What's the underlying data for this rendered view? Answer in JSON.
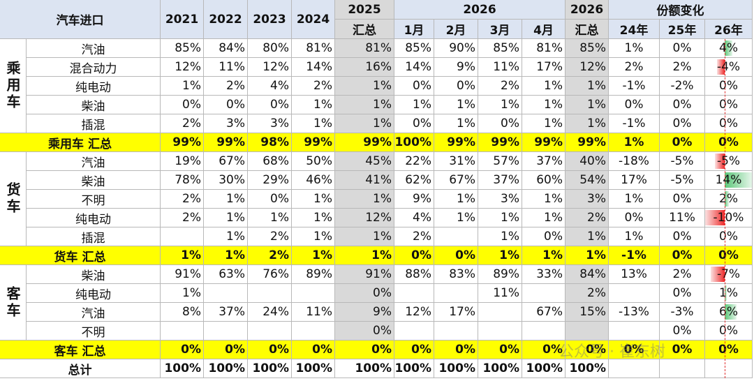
{
  "header": {
    "title": "汽车进口",
    "years": [
      "2021",
      "2022",
      "2023",
      "2024"
    ],
    "total_2025": [
      "2025",
      "汇总"
    ],
    "year_2026": "2026",
    "months": [
      "1月",
      "2月",
      "3月",
      "4月"
    ],
    "total_2026": [
      "2026",
      "汇总"
    ],
    "share_change": "份额变化",
    "share_years": [
      "24年",
      "25年",
      "26年"
    ]
  },
  "groups": [
    {
      "label": "乘用车",
      "rows": [
        {
          "name": "汽油",
          "cells": [
            "85%",
            "84%",
            "80%",
            "81%",
            "81%",
            "85%",
            "90%",
            "85%",
            "81%",
            "85%",
            "1%",
            "0%",
            "4%"
          ]
        },
        {
          "name": "混合动力",
          "cells": [
            "12%",
            "11%",
            "12%",
            "14%",
            "16%",
            "14%",
            "9%",
            "11%",
            "17%",
            "12%",
            "2%",
            "2%",
            "-4%"
          ]
        },
        {
          "name": "纯电动",
          "cells": [
            "1%",
            "2%",
            "4%",
            "2%",
            "1%",
            "0%",
            "0%",
            "2%",
            "1%",
            "1%",
            "-1%",
            "-2%",
            "0%"
          ]
        },
        {
          "name": "柴油",
          "cells": [
            "0%",
            "0%",
            "0%",
            "1%",
            "1%",
            "1%",
            "1%",
            "1%",
            "1%",
            "1%",
            "0%",
            "0%",
            "0%"
          ]
        },
        {
          "name": "插混",
          "cells": [
            "2%",
            "3%",
            "3%",
            "1%",
            "1%",
            "0%",
            "1%",
            "0%",
            "1%",
            "1%",
            "-1%",
            "0%",
            "0%"
          ]
        }
      ],
      "total": {
        "name": "乘用车 汇总",
        "cells": [
          "99%",
          "99%",
          "98%",
          "99%",
          "99%",
          "100%",
          "99%",
          "99%",
          "99%",
          "99%",
          "1%",
          "0%",
          "0%"
        ]
      }
    },
    {
      "label": "货车",
      "rows": [
        {
          "name": "汽油",
          "cells": [
            "19%",
            "67%",
            "68%",
            "50%",
            "45%",
            "22%",
            "31%",
            "57%",
            "37%",
            "40%",
            "-18%",
            "-5%",
            "-5%"
          ]
        },
        {
          "name": "柴油",
          "cells": [
            "78%",
            "30%",
            "29%",
            "46%",
            "41%",
            "62%",
            "67%",
            "37%",
            "60%",
            "54%",
            "17%",
            "-5%",
            "14%"
          ]
        },
        {
          "name": "不明",
          "cells": [
            "2%",
            "1%",
            "0%",
            "1%",
            "1%",
            "9%",
            "1%",
            "3%",
            "1%",
            "3%",
            "1%",
            "0%",
            "2%"
          ]
        },
        {
          "name": "纯电动",
          "cells": [
            "2%",
            "1%",
            "1%",
            "1%",
            "12%",
            "4%",
            "1%",
            "1%",
            "1%",
            "2%",
            "0%",
            "11%",
            "-10%"
          ]
        },
        {
          "name": "插混",
          "cells": [
            null,
            "1%",
            "2%",
            "1%",
            "1%",
            "2%",
            null,
            "1%",
            "0%",
            "1%",
            "1%",
            "0%",
            "0%"
          ]
        }
      ],
      "total": {
        "name": "货车 汇总",
        "cells": [
          "1%",
          "1%",
          "2%",
          "1%",
          "1%",
          "0%",
          "0%",
          "1%",
          "1%",
          "1%",
          "-1%",
          "0%",
          "0%"
        ]
      }
    },
    {
      "label": "客车",
      "rows": [
        {
          "name": "柴油",
          "cells": [
            "91%",
            "63%",
            "76%",
            "89%",
            "91%",
            "88%",
            "83%",
            "89%",
            "33%",
            "84%",
            "13%",
            "2%",
            "-7%"
          ]
        },
        {
          "name": "纯电动",
          "cells": [
            "1%",
            null,
            null,
            null,
            "0%",
            null,
            null,
            "11%",
            null,
            "2%",
            null,
            "0%",
            "1%"
          ]
        },
        {
          "name": "汽油",
          "cells": [
            "8%",
            "37%",
            "24%",
            "11%",
            "9%",
            "12%",
            "17%",
            null,
            "67%",
            "15%",
            "-13%",
            "-3%",
            "6%"
          ]
        },
        {
          "name": "不明",
          "cells": [
            null,
            null,
            null,
            null,
            "0%",
            null,
            null,
            null,
            null,
            null,
            null,
            "0%",
            "0%"
          ]
        }
      ],
      "total": {
        "name": "客车 汇总",
        "cells": [
          "0%",
          "0%",
          "0%",
          "0%",
          "0%",
          "0%",
          "0%",
          "0%",
          "0%",
          "0%",
          "0%",
          "0%",
          "0%"
        ]
      }
    }
  ],
  "grand_total": {
    "name": "总计",
    "cells": [
      "100%",
      "100%",
      "100%",
      "100%",
      "100%",
      "100%",
      "100%",
      "100%",
      "100%",
      "100%",
      null,
      null,
      null
    ]
  },
  "watermark": "公众号 · 崔东树"
}
